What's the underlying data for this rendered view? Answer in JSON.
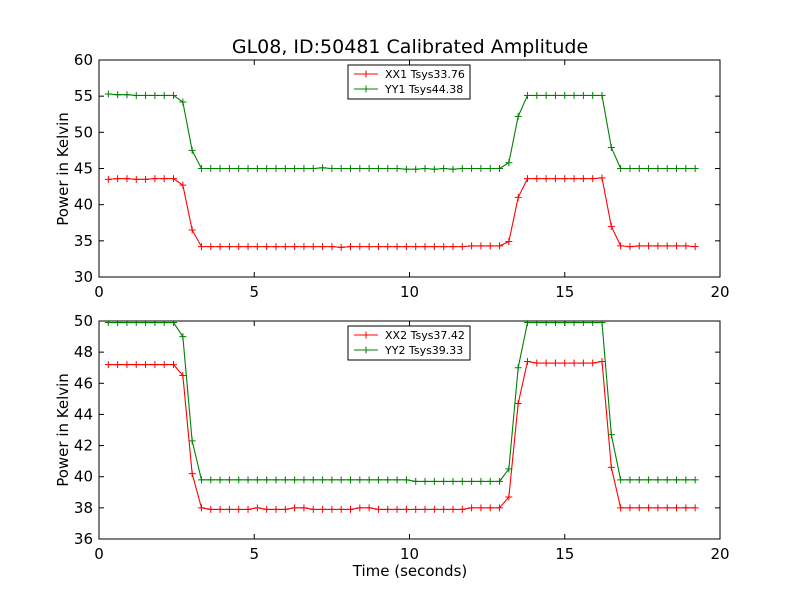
{
  "chart_data": [
    {
      "type": "line",
      "title": "GL08, ID:50481 Calibrated Amplitude",
      "xlabel": "",
      "ylabel": "Power in Kelvin",
      "xlim": [
        0,
        20
      ],
      "ylim": [
        30,
        60
      ],
      "xticks": [
        0,
        5,
        10,
        15,
        20
      ],
      "yticks": [
        30,
        35,
        40,
        45,
        50,
        55,
        60
      ],
      "legend_position": "top-center",
      "grid": false,
      "x": [
        0.3,
        0.6,
        0.9,
        1.2,
        1.5,
        1.8,
        2.1,
        2.4,
        2.7,
        3.0,
        3.3,
        3.6,
        3.9,
        4.2,
        4.5,
        4.8,
        5.1,
        5.4,
        5.7,
        6.0,
        6.3,
        6.6,
        6.9,
        7.2,
        7.5,
        7.8,
        8.1,
        8.4,
        8.7,
        9.0,
        9.3,
        9.6,
        9.9,
        10.2,
        10.5,
        10.8,
        11.1,
        11.4,
        11.7,
        12.0,
        12.3,
        12.6,
        12.9,
        13.2,
        13.5,
        13.8,
        14.1,
        14.4,
        14.7,
        15.0,
        15.3,
        15.6,
        15.9,
        16.2,
        16.5,
        16.8,
        17.1,
        17.4,
        17.7,
        18.0,
        18.3,
        18.6,
        18.9,
        19.2
      ],
      "series": [
        {
          "name": "XX1 Tsys33.76",
          "color": "#ff0000",
          "values": [
            43.5,
            43.6,
            43.6,
            43.5,
            43.5,
            43.6,
            43.6,
            43.6,
            42.7,
            36.5,
            34.2,
            34.2,
            34.2,
            34.2,
            34.2,
            34.2,
            34.2,
            34.2,
            34.2,
            34.2,
            34.2,
            34.2,
            34.2,
            34.2,
            34.2,
            34.1,
            34.2,
            34.2,
            34.2,
            34.2,
            34.2,
            34.2,
            34.2,
            34.2,
            34.2,
            34.2,
            34.2,
            34.2,
            34.2,
            34.3,
            34.3,
            34.3,
            34.3,
            34.9,
            41.0,
            43.6,
            43.6,
            43.6,
            43.6,
            43.6,
            43.6,
            43.6,
            43.6,
            43.7,
            37.0,
            34.3,
            34.2,
            34.3,
            34.3,
            34.3,
            34.3,
            34.3,
            34.3,
            34.2
          ]
        },
        {
          "name": "YY1 Tsys44.38",
          "color": "#008000",
          "values": [
            55.3,
            55.2,
            55.2,
            55.1,
            55.1,
            55.1,
            55.1,
            55.1,
            54.2,
            47.5,
            45.0,
            45.0,
            45.0,
            45.0,
            45.0,
            45.0,
            45.0,
            45.0,
            45.0,
            45.0,
            45.0,
            45.0,
            45.0,
            45.1,
            45.0,
            45.0,
            45.0,
            45.0,
            45.0,
            45.0,
            45.0,
            45.0,
            44.9,
            44.9,
            45.0,
            44.9,
            45.0,
            44.9,
            45.0,
            45.0,
            45.0,
            45.0,
            45.0,
            45.8,
            52.2,
            55.1,
            55.1,
            55.1,
            55.1,
            55.1,
            55.1,
            55.1,
            55.1,
            55.1,
            47.9,
            45.0,
            45.0,
            45.0,
            45.0,
            45.0,
            45.0,
            45.0,
            45.0,
            45.0
          ]
        }
      ]
    },
    {
      "type": "line",
      "title": "",
      "xlabel": "Time (seconds)",
      "ylabel": "Power in Kelvin",
      "xlim": [
        0,
        20
      ],
      "ylim": [
        36,
        50
      ],
      "xticks": [
        0,
        5,
        10,
        15,
        20
      ],
      "yticks": [
        36,
        38,
        40,
        42,
        44,
        46,
        48,
        50
      ],
      "legend_position": "top-center",
      "grid": false,
      "x": [
        0.3,
        0.6,
        0.9,
        1.2,
        1.5,
        1.8,
        2.1,
        2.4,
        2.7,
        3.0,
        3.3,
        3.6,
        3.9,
        4.2,
        4.5,
        4.8,
        5.1,
        5.4,
        5.7,
        6.0,
        6.3,
        6.6,
        6.9,
        7.2,
        7.5,
        7.8,
        8.1,
        8.4,
        8.7,
        9.0,
        9.3,
        9.6,
        9.9,
        10.2,
        10.5,
        10.8,
        11.1,
        11.4,
        11.7,
        12.0,
        12.3,
        12.6,
        12.9,
        13.2,
        13.5,
        13.8,
        14.1,
        14.4,
        14.7,
        15.0,
        15.3,
        15.6,
        15.9,
        16.2,
        16.5,
        16.8,
        17.1,
        17.4,
        17.7,
        18.0,
        18.3,
        18.6,
        18.9,
        19.2
      ],
      "series": [
        {
          "name": "XX2 Tsys37.42",
          "color": "#ff0000",
          "values": [
            47.2,
            47.2,
            47.2,
            47.2,
            47.2,
            47.2,
            47.2,
            47.2,
            46.5,
            40.2,
            38.0,
            37.9,
            37.9,
            37.9,
            37.9,
            37.9,
            38.0,
            37.9,
            37.9,
            37.9,
            38.0,
            38.0,
            37.9,
            37.9,
            37.9,
            37.9,
            37.9,
            38.0,
            38.0,
            37.9,
            37.9,
            37.9,
            37.9,
            37.9,
            37.9,
            37.9,
            37.9,
            37.9,
            37.9,
            38.0,
            38.0,
            38.0,
            38.0,
            38.7,
            44.7,
            47.4,
            47.3,
            47.3,
            47.3,
            47.3,
            47.3,
            47.3,
            47.3,
            47.4,
            40.6,
            38.0,
            38.0,
            38.0,
            38.0,
            38.0,
            38.0,
            38.0,
            38.0,
            38.0
          ]
        },
        {
          "name": "YY2 Tsys39.33",
          "color": "#008000",
          "values": [
            49.9,
            49.9,
            49.9,
            49.9,
            49.9,
            49.9,
            49.9,
            49.9,
            49.0,
            42.3,
            39.8,
            39.8,
            39.8,
            39.8,
            39.8,
            39.8,
            39.8,
            39.8,
            39.8,
            39.8,
            39.8,
            39.8,
            39.8,
            39.8,
            39.8,
            39.8,
            39.8,
            39.8,
            39.8,
            39.8,
            39.8,
            39.8,
            39.8,
            39.7,
            39.7,
            39.7,
            39.7,
            39.7,
            39.7,
            39.7,
            39.7,
            39.7,
            39.7,
            40.5,
            47.0,
            49.9,
            49.9,
            49.9,
            49.9,
            49.9,
            49.9,
            49.9,
            49.9,
            49.9,
            42.7,
            39.8,
            39.8,
            39.8,
            39.8,
            39.8,
            39.8,
            39.8,
            39.8,
            39.8
          ]
        }
      ]
    }
  ]
}
